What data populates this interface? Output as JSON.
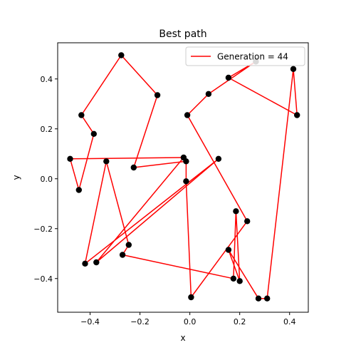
{
  "chart_data": {
    "type": "line",
    "title": "Best path",
    "xlabel": "x",
    "ylabel": "y",
    "xlim": [
      -0.53,
      0.475
    ],
    "ylim": [
      -0.535,
      0.545
    ],
    "xticks": [
      -0.4,
      -0.2,
      0.0,
      0.2,
      0.4
    ],
    "xtick_labels": [
      "−0.4",
      "−0.2",
      "0.0",
      "0.2",
      "0.4"
    ],
    "yticks": [
      -0.4,
      -0.2,
      0.0,
      0.2,
      0.4
    ],
    "ytick_labels": [
      "−0.4",
      "−0.2",
      "0.0",
      "0.2",
      "0.4"
    ],
    "grid": false,
    "legend_position": "top-right",
    "series": [
      {
        "name": "Generation = 44",
        "color": "#ff0000",
        "marker_color": "#000000",
        "points": [
          [
            0.265,
            0.47
          ],
          [
            0.155,
            0.405
          ],
          [
            0.43,
            0.255
          ],
          [
            0.415,
            0.44
          ],
          [
            0.31,
            -0.48
          ],
          [
            0.275,
            -0.48
          ],
          [
            0.155,
            -0.285
          ],
          [
            0.2,
            -0.41
          ],
          [
            0.185,
            -0.13
          ],
          [
            0.175,
            -0.4
          ],
          [
            -0.27,
            -0.305
          ],
          [
            -0.245,
            -0.265
          ],
          [
            -0.335,
            0.07
          ],
          [
            -0.42,
            -0.34
          ],
          [
            0.115,
            0.08
          ],
          [
            -0.375,
            -0.335
          ],
          [
            -0.025,
            0.085
          ],
          [
            -0.48,
            0.08
          ],
          [
            -0.445,
            -0.045
          ],
          [
            -0.385,
            0.18
          ],
          [
            -0.435,
            0.255
          ],
          [
            -0.275,
            0.495
          ],
          [
            -0.13,
            0.335
          ],
          [
            -0.225,
            0.045
          ],
          [
            -0.015,
            0.07
          ],
          [
            -0.015,
            -0.01
          ],
          [
            0.005,
            -0.475
          ],
          [
            0.23,
            -0.17
          ],
          [
            -0.01,
            0.255
          ],
          [
            0.075,
            0.34
          ],
          [
            0.265,
            0.47
          ]
        ]
      }
    ]
  }
}
